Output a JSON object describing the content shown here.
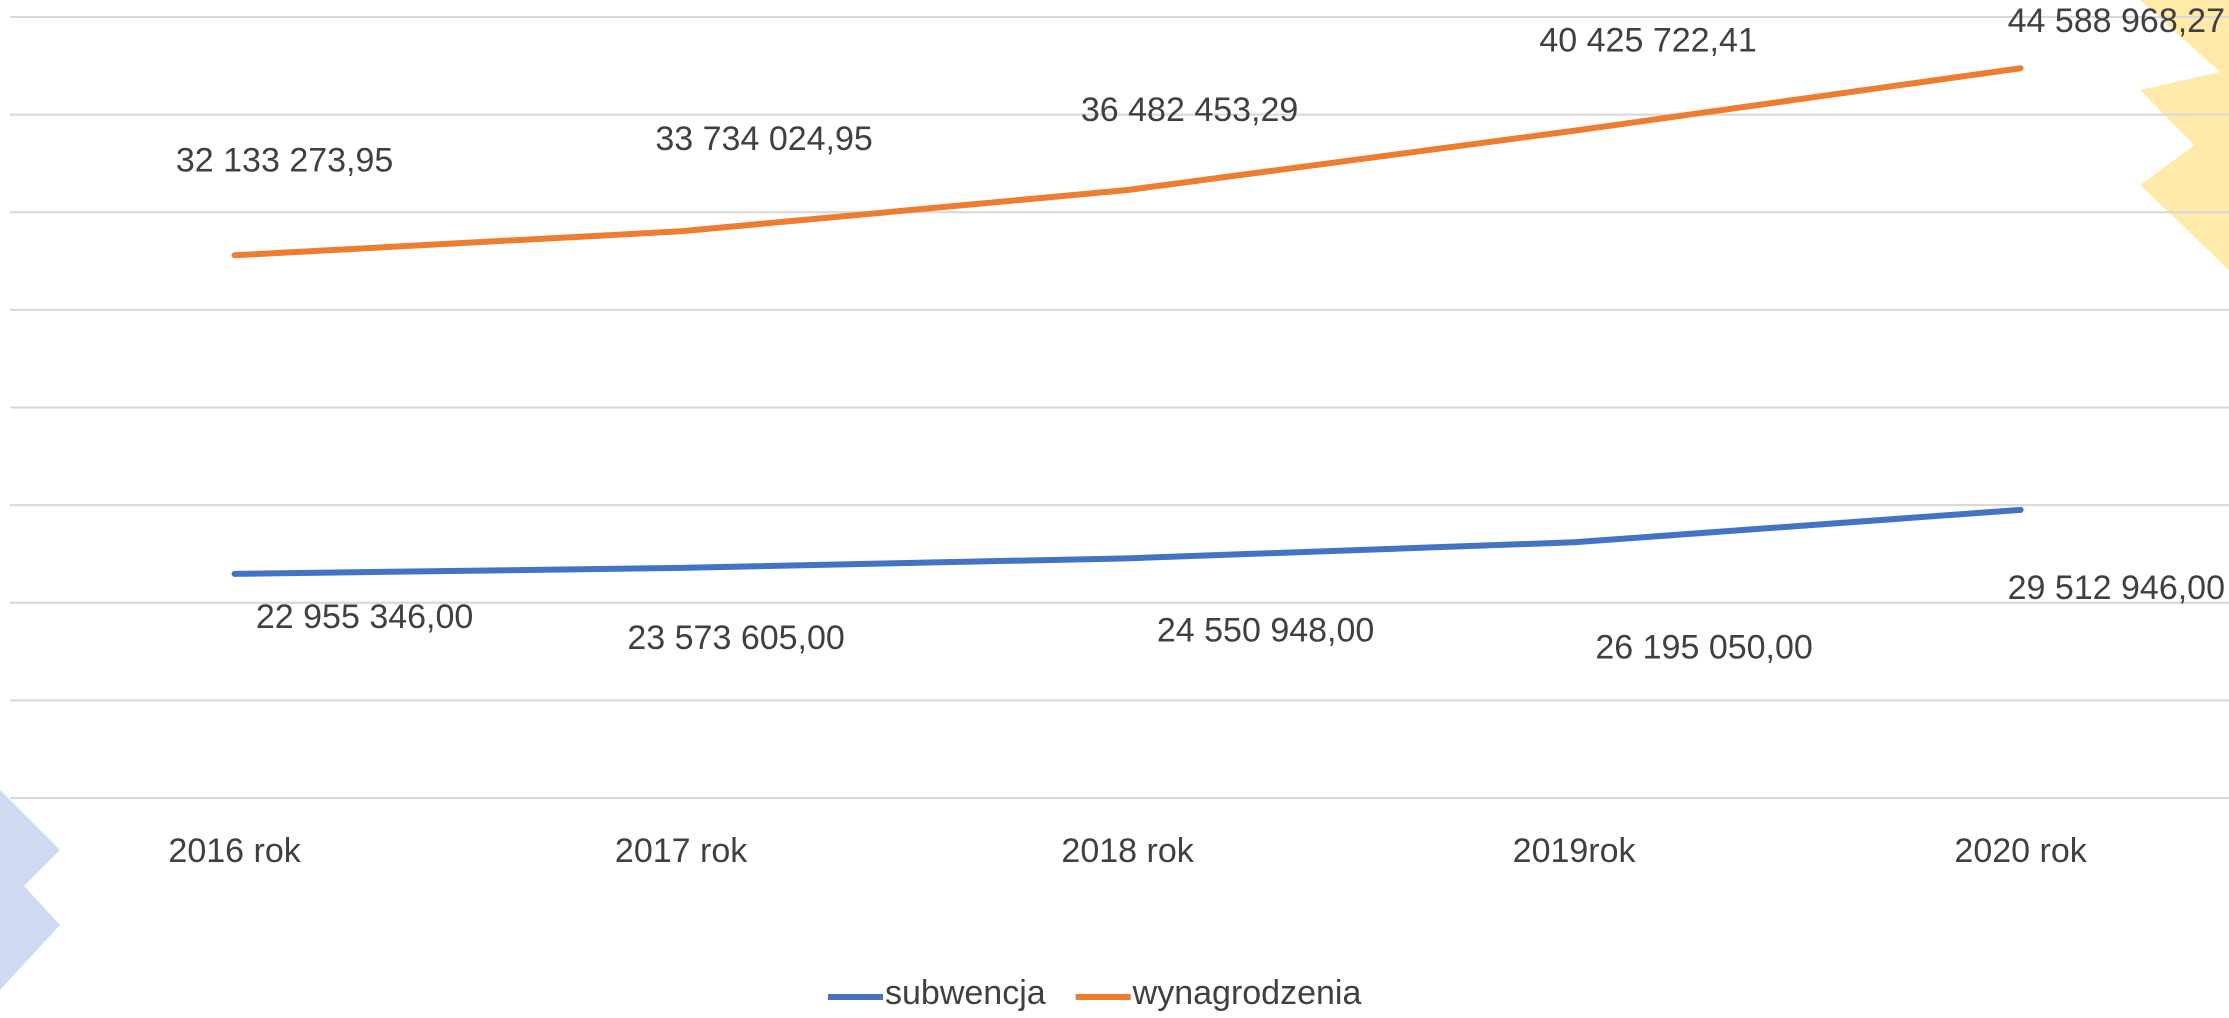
{
  "chart_data": {
    "type": "line",
    "categories": [
      "2016 rok",
      "2017 rok",
      "2018 rok",
      "2019rok",
      "2020 rok"
    ],
    "series": [
      {
        "name": "subwencja",
        "color": "#4472c4",
        "axis": "y2",
        "values": [
          22955346.0,
          23573605.0,
          24550948.0,
          26195050.0,
          29512946.0
        ],
        "value_labels": [
          "22 955 346,00",
          "23 573 605,00",
          "24 550 948,00",
          "26 195 050,00",
          "29 512 946,00"
        ]
      },
      {
        "name": "wynagrodzenia",
        "color": "#ed7d31",
        "values": [
          32133273.95,
          33734024.95,
          36482453.29,
          40425722.41,
          44588968.27
        ],
        "value_labels": [
          "32 133 273,95",
          "33 734 024,95",
          "36 482 453,29",
          "40 425 722,41",
          "44 588 968,27"
        ]
      }
    ],
    "ylim": [
      -4000000,
      48000000
    ],
    "yticks": [
      -4000000,
      2500000,
      9000000,
      15500000,
      22000000,
      28500000,
      35000000,
      41500000,
      48000000
    ],
    "y2lim": [
      0,
      80000000
    ],
    "y2ticks": [
      0,
      10000000,
      20000000,
      30000000,
      40000000,
      50000000,
      60000000,
      70000000,
      80000000
    ],
    "grid": true,
    "legend": "bottom"
  }
}
